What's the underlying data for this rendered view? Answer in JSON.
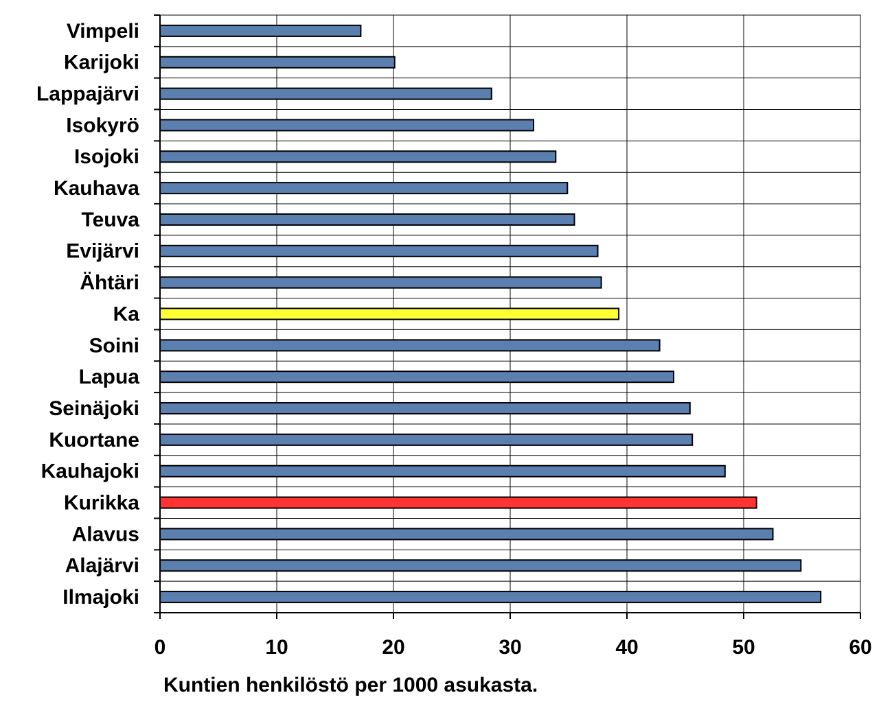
{
  "chart_data": {
    "type": "bar",
    "orientation": "horizontal",
    "xlabel": "Kuntien henkilöstö per 1000 asukasta.",
    "categories": [
      "Vimpeli",
      "Karijoki",
      "Lappajärvi",
      "Isokyrö",
      "Isojoki",
      "Kauhava",
      "Teuva",
      "Evijärvi",
      "Ähtäri",
      "Ka",
      "Soini",
      "Lapua",
      "Seinäjoki",
      "Kuortane",
      "Kauhajoki",
      "Kurikka",
      "Alavus",
      "Alajärvi",
      "Ilmajoki"
    ],
    "values": [
      17.2,
      20.1,
      28.4,
      32.0,
      33.9,
      34.9,
      35.5,
      37.5,
      37.8,
      39.3,
      42.8,
      44.0,
      45.4,
      45.6,
      48.4,
      51.1,
      52.5,
      54.9,
      56.6
    ],
    "colors": [
      "#5b7fae",
      "#5b7fae",
      "#5b7fae",
      "#5b7fae",
      "#5b7fae",
      "#5b7fae",
      "#5b7fae",
      "#5b7fae",
      "#5b7fae",
      "#ffff33",
      "#5b7fae",
      "#5b7fae",
      "#5b7fae",
      "#5b7fae",
      "#5b7fae",
      "#ff3333",
      "#5b7fae",
      "#5b7fae",
      "#5b7fae"
    ],
    "xlim": [
      0,
      60
    ],
    "xticks": [
      0,
      10,
      20,
      30,
      40,
      50,
      60
    ],
    "grid": true
  }
}
